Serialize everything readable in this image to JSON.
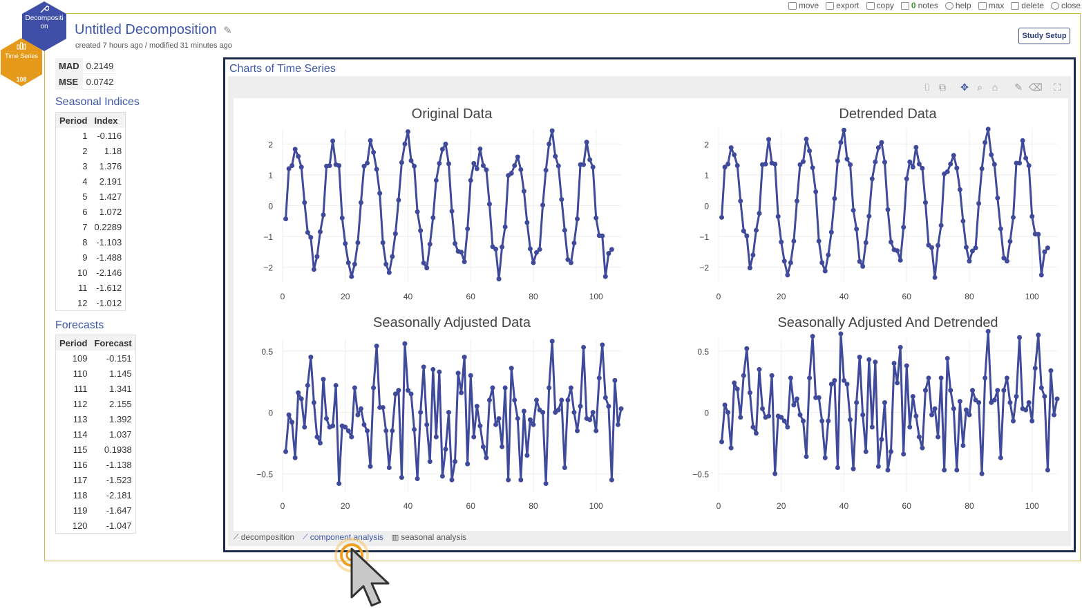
{
  "toolbar": {
    "items": [
      {
        "label": "move",
        "icon": "move-icon"
      },
      {
        "label": "export",
        "icon": "export-icon"
      },
      {
        "label": "copy",
        "icon": "copy-icon"
      },
      {
        "label": "notes",
        "count": "0",
        "icon": "notes-icon"
      },
      {
        "label": "help",
        "icon": "help-icon"
      },
      {
        "label": "max",
        "icon": "max-icon"
      },
      {
        "label": "delete",
        "icon": "delete-icon"
      },
      {
        "label": "close",
        "icon": "close-icon"
      }
    ]
  },
  "hex": {
    "main_label": "Decompositi on",
    "ts_label": "Time Series",
    "ts_count": "108"
  },
  "header": {
    "title": "Untitled Decomposition",
    "subtitle": "created 7 hours ago / modified 31 minutes ago",
    "study_setup": "Study Setup"
  },
  "stats": [
    {
      "label": "MAD",
      "value": "0.2149"
    },
    {
      "label": "MSE",
      "value": "0.0742"
    }
  ],
  "seasonal": {
    "title": "Seasonal Indices",
    "headers": [
      "Period",
      "Index"
    ],
    "rows": [
      [
        "1",
        "-0.116"
      ],
      [
        "2",
        "1.18"
      ],
      [
        "3",
        "1.376"
      ],
      [
        "4",
        "2.191"
      ],
      [
        "5",
        "1.427"
      ],
      [
        "6",
        "1.072"
      ],
      [
        "7",
        "0.2289"
      ],
      [
        "8",
        "-1.103"
      ],
      [
        "9",
        "-1.488"
      ],
      [
        "10",
        "-2.146"
      ],
      [
        "11",
        "-1.612"
      ],
      [
        "12",
        "-1.012"
      ]
    ]
  },
  "forecasts": {
    "title": "Forecasts",
    "headers": [
      "Period",
      "Forecast"
    ],
    "rows": [
      [
        "109",
        "-0.151"
      ],
      [
        "110",
        "1.145"
      ],
      [
        "111",
        "1.341"
      ],
      [
        "112",
        "2.155"
      ],
      [
        "113",
        "1.392"
      ],
      [
        "114",
        "1.037"
      ],
      [
        "115",
        "0.1938"
      ],
      [
        "116",
        "-1.138"
      ],
      [
        "117",
        "-1.523"
      ],
      [
        "118",
        "-2.181"
      ],
      [
        "119",
        "-1.647"
      ],
      [
        "120",
        "-1.047"
      ]
    ]
  },
  "chart_panel": {
    "title": "Charts of Time Series",
    "tabs": [
      {
        "label": "decomposition",
        "active": false
      },
      {
        "label": "component analysis",
        "active": true
      },
      {
        "label": "seasonal analysis",
        "active": false
      }
    ]
  },
  "colors": {
    "series": "#3f4a9a",
    "accent": "#3e57a6",
    "brand_hex": "#3f4fa8",
    "ts_hex": "#e69a1c",
    "panel_border": "#1a2b4b"
  },
  "chart_data": [
    {
      "type": "line",
      "title": "Original Data",
      "xlabel": "",
      "ylabel": "",
      "xlim": [
        0,
        108
      ],
      "ylim": [
        -2.5,
        2.5
      ],
      "xticks": [
        0,
        20,
        40,
        60,
        80,
        100
      ],
      "yticks": [
        -2,
        -1,
        0,
        1,
        2
      ],
      "ytick_labels": [
        "−2",
        "−1",
        "0",
        "1",
        "2"
      ],
      "x_start": 1,
      "values": [
        -0.43,
        1.2,
        1.3,
        1.83,
        1.6,
        1.25,
        0.1,
        -0.87,
        -1.03,
        -2.07,
        -1.65,
        -0.85,
        -0.3,
        1.28,
        1.3,
        2.1,
        1.33,
        1.3,
        -0.4,
        -1.23,
        -1.85,
        -2.3,
        -1.9,
        -1.2,
        0.1,
        1.28,
        1.38,
        2.11,
        1.73,
        1.18,
        0.4,
        -1.2,
        -1.9,
        -2.17,
        -1.65,
        -0.91,
        0.18,
        1.4,
        2.0,
        2.4,
        1.46,
        1.28,
        -0.2,
        -0.81,
        -1.86,
        -2.02,
        -1.25,
        -0.39,
        0.82,
        1.37,
        1.83,
        2.0,
        1.36,
        -0.18,
        -1.23,
        -1.48,
        -1.51,
        -1.82,
        -0.75,
        0.82,
        1.37,
        1.2,
        1.84,
        1.3,
        1.16,
        0.05,
        -1.33,
        -1.41,
        -2.38,
        -1.34,
        -0.69,
        0.98,
        1.05,
        1.3,
        1.58,
        1.17,
        0.47,
        -0.55,
        -1.4,
        -1.85,
        -1.52,
        -1.42,
        0.02,
        1.15,
        2.0,
        2.43,
        1.6,
        1.29,
        0.2,
        -0.8,
        -1.75,
        -1.85,
        -1.21,
        -0.43,
        1.33,
        1.33,
        2.06,
        1.49,
        1.25,
        -0.4,
        -0.97,
        -0.98,
        -2.3,
        -1.55,
        -1.42
      ]
    },
    {
      "type": "line",
      "title": "Detrended Data",
      "xlabel": "",
      "ylabel": "",
      "xlim": [
        0,
        108
      ],
      "ylim": [
        -2.5,
        2.5
      ],
      "xticks": [
        0,
        20,
        40,
        60,
        80,
        100
      ],
      "yticks": [
        -2,
        -1,
        0,
        1,
        2
      ],
      "ytick_labels": [
        "−2",
        "−1",
        "0",
        "1",
        "2"
      ],
      "x_start": 1,
      "values": [
        -0.38,
        1.25,
        1.35,
        1.88,
        1.65,
        1.3,
        0.15,
        -0.82,
        -0.98,
        -2.02,
        -1.6,
        -0.8,
        -0.25,
        1.33,
        1.35,
        2.15,
        1.38,
        1.35,
        -0.35,
        -1.18,
        -1.8,
        -2.25,
        -1.85,
        -1.15,
        0.15,
        1.33,
        1.43,
        2.16,
        1.78,
        1.23,
        0.45,
        -1.15,
        -1.85,
        -2.12,
        -1.6,
        -0.86,
        0.23,
        1.45,
        2.05,
        2.45,
        1.51,
        1.33,
        -0.15,
        -0.76,
        -1.81,
        -1.97,
        -1.2,
        -0.34,
        0.87,
        1.42,
        1.88,
        2.05,
        1.41,
        -0.13,
        -1.18,
        -1.43,
        -1.46,
        -1.77,
        -0.7,
        0.87,
        1.42,
        1.25,
        1.89,
        1.35,
        1.21,
        0.1,
        -1.28,
        -1.36,
        -2.33,
        -1.29,
        -0.64,
        1.03,
        1.1,
        1.35,
        1.63,
        1.22,
        0.52,
        -0.5,
        -1.35,
        -1.8,
        -1.47,
        -1.37,
        0.07,
        1.2,
        2.05,
        2.48,
        1.65,
        1.34,
        0.25,
        -0.75,
        -1.7,
        -1.8,
        -1.16,
        -0.38,
        1.38,
        1.38,
        2.11,
        1.54,
        1.3,
        -0.35,
        -0.92,
        -0.93,
        -2.25,
        -1.5,
        -1.37
      ]
    },
    {
      "type": "line",
      "title": "Seasonally Adjusted Data",
      "xlabel": "",
      "ylabel": "",
      "xlim": [
        0,
        108
      ],
      "ylim": [
        -0.65,
        0.6
      ],
      "xticks": [
        0,
        20,
        40,
        60,
        80,
        100
      ],
      "yticks": [
        -0.5,
        0,
        0.5
      ],
      "ytick_labels": [
        "−0.5",
        "0",
        "0.5"
      ],
      "x_start": 1,
      "values": [
        -0.32,
        -0.02,
        -0.08,
        -0.37,
        0.16,
        0.11,
        -0.12,
        0.22,
        0.45,
        0.08,
        -0.2,
        -0.25,
        0.27,
        -0.05,
        -0.12,
        -0.11,
        0.22,
        -0.58,
        -0.11,
        -0.12,
        -0.15,
        -0.2,
        0.2,
        -0.02,
        0.03,
        -0.1,
        -0.15,
        -0.44,
        0.2,
        0.54,
        0.04,
        0.04,
        -0.15,
        -0.45,
        -0.15,
        0.15,
        0.18,
        -0.53,
        0.56,
        0.18,
        0.15,
        -0.14,
        -0.54,
        0.0,
        0.37,
        -0.1,
        -0.4,
        0.35,
        -0.2,
        0.33,
        -0.52,
        -0.3,
        0.0,
        -0.55,
        -0.4,
        0.32,
        0.16,
        0.45,
        -0.42,
        0.3,
        -0.2,
        0.05,
        -0.11,
        -0.28,
        -0.37,
        0.1,
        0.2,
        -0.1,
        -0.05,
        -0.28,
        0.2,
        -0.55,
        0.36,
        0.1,
        -0.05,
        -0.55,
        0.01,
        -0.35,
        -0.06,
        -0.1,
        0.1,
        0.02,
        0.0,
        -0.58,
        0.2,
        0.58,
        0.0,
        0.02,
        0.1,
        -0.45,
        0.1,
        0.2,
        0.0,
        -0.15,
        0.05,
        0.53,
        -0.05,
        -0.06,
        0.0,
        -0.15,
        0.28,
        0.55,
        0.12,
        0.05,
        -0.55,
        0.26,
        -0.1,
        0.03
      ]
    },
    {
      "type": "line",
      "title": "Seasonally Adjusted And Detrended",
      "xlabel": "",
      "ylabel": "",
      "xlim": [
        0,
        108
      ],
      "ylim": [
        -0.65,
        0.6
      ],
      "xticks": [
        0,
        20,
        40,
        60,
        80,
        100
      ],
      "yticks": [
        -0.5,
        0,
        0.5
      ],
      "ytick_labels": [
        "−0.5",
        "0",
        "0.5"
      ],
      "x_start": 1,
      "values": [
        -0.24,
        0.06,
        0.0,
        -0.29,
        0.24,
        0.19,
        -0.04,
        0.3,
        0.52,
        0.16,
        -0.12,
        -0.17,
        0.35,
        0.03,
        -0.04,
        -0.03,
        0.3,
        -0.5,
        -0.03,
        -0.04,
        -0.07,
        -0.12,
        0.28,
        0.06,
        0.11,
        -0.02,
        -0.07,
        -0.36,
        0.28,
        0.62,
        0.12,
        0.12,
        -0.07,
        -0.37,
        -0.07,
        0.23,
        0.26,
        -0.45,
        0.64,
        0.26,
        0.23,
        -0.06,
        -0.46,
        0.08,
        0.45,
        -0.02,
        -0.32,
        0.43,
        -0.12,
        0.41,
        -0.44,
        -0.22,
        0.08,
        -0.47,
        -0.32,
        0.4,
        0.24,
        0.53,
        -0.34,
        0.38,
        -0.12,
        0.13,
        -0.03,
        -0.2,
        -0.29,
        0.18,
        0.28,
        -0.02,
        0.03,
        -0.2,
        0.28,
        -0.47,
        0.44,
        0.18,
        0.03,
        -0.47,
        0.09,
        -0.27,
        0.02,
        -0.02,
        0.18,
        0.1,
        0.08,
        -0.5,
        0.28,
        0.66,
        0.08,
        0.1,
        0.18,
        -0.37,
        0.18,
        0.28,
        0.08,
        -0.07,
        0.13,
        0.61,
        0.03,
        0.02,
        0.08,
        -0.07,
        0.36,
        0.63,
        0.2,
        0.13,
        -0.47,
        0.34,
        -0.02,
        0.11
      ]
    }
  ]
}
